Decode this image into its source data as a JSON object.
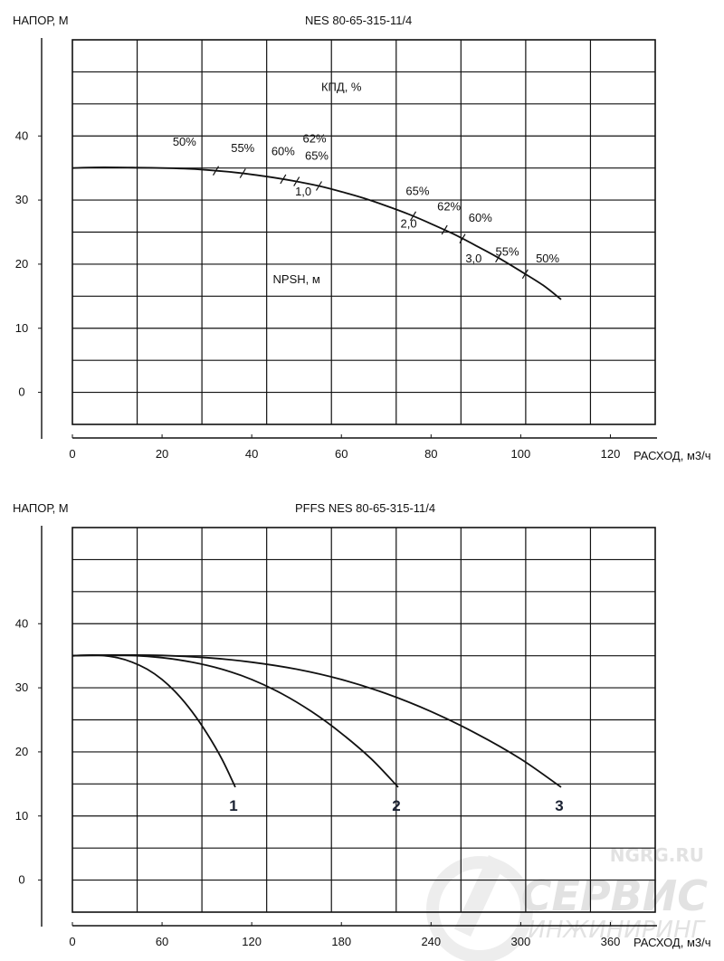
{
  "chart_data": [
    {
      "type": "line",
      "title": "NES 80-65-315-11/4",
      "ylabel": "НАПОР, М",
      "xlabel": "РАСХОД, м3/ч",
      "x_ticks": [
        0,
        20,
        40,
        60,
        80,
        100,
        120
      ],
      "y_ticks": [
        0,
        10,
        20,
        30,
        40
      ],
      "xlim": [
        0,
        130
      ],
      "ylim": [
        -5,
        55
      ],
      "grid": true,
      "series": [
        {
          "x": [
            0,
            5,
            10,
            15,
            20,
            25,
            30,
            35,
            40,
            45,
            50,
            55,
            60,
            65,
            70,
            75,
            80,
            85,
            90,
            95,
            100,
            105,
            109
          ],
          "y": [
            35,
            35.1,
            35.1,
            35.05,
            35,
            34.9,
            34.7,
            34.4,
            34,
            33.5,
            32.9,
            32.2,
            31.3,
            30.3,
            29.1,
            27.8,
            26.3,
            24.7,
            22.9,
            21,
            18.9,
            16.7,
            14.5
          ]
        }
      ],
      "annotations": [
        {
          "text": "КПД, %",
          "x": 60,
          "y": 47
        },
        {
          "text": "NPSH, м",
          "x": 50,
          "y": 17
        },
        {
          "text": "50%",
          "x": 25,
          "y": 38.5
        },
        {
          "text": "55%",
          "x": 38,
          "y": 37.5
        },
        {
          "text": "60%",
          "x": 47,
          "y": 37
        },
        {
          "text": "62%",
          "x": 54,
          "y": 39
        },
        {
          "text": "65%",
          "x": 54.5,
          "y": 36.3
        },
        {
          "text": "1,0",
          "x": 51.5,
          "y": 30.7
        },
        {
          "text": "65%",
          "x": 77,
          "y": 30.8
        },
        {
          "text": "62%",
          "x": 84,
          "y": 28.4
        },
        {
          "text": "2,0",
          "x": 75,
          "y": 25.7
        },
        {
          "text": "60%",
          "x": 91,
          "y": 26.6
        },
        {
          "text": "55%",
          "x": 97,
          "y": 21.3
        },
        {
          "text": "3,0",
          "x": 89.5,
          "y": 20.3
        },
        {
          "text": "50%",
          "x": 106,
          "y": 20.3
        }
      ],
      "efficiency_marks_x": [
        32,
        38,
        47,
        50,
        55,
        76,
        83,
        87,
        95,
        101
      ]
    },
    {
      "type": "line",
      "title": "PFFS NES 80-65-315-11/4",
      "ylabel": "НАПОР, М",
      "xlabel": "РАСХОД, м3/ч",
      "x_ticks": [
        0,
        60,
        120,
        180,
        240,
        300,
        360
      ],
      "y_ticks": [
        0,
        10,
        20,
        30,
        40
      ],
      "xlim": [
        0,
        390
      ],
      "ylim": [
        -5,
        55
      ],
      "grid": true,
      "series": [
        {
          "name": "1",
          "x": [
            0,
            10,
            20,
            30,
            40,
            50,
            60,
            70,
            80,
            90,
            100,
            109
          ],
          "y": [
            35,
            35.1,
            35.05,
            34.7,
            34,
            32.9,
            31.3,
            29.1,
            26.3,
            22.9,
            18.9,
            14.5
          ]
        },
        {
          "name": "2",
          "x": [
            0,
            20,
            40,
            60,
            80,
            100,
            120,
            140,
            160,
            180,
            200,
            218
          ],
          "y": [
            35,
            35.1,
            35.05,
            34.7,
            34,
            32.9,
            31.3,
            29.1,
            26.3,
            22.9,
            18.9,
            14.5
          ]
        },
        {
          "name": "3",
          "x": [
            0,
            30,
            60,
            90,
            120,
            150,
            180,
            210,
            240,
            270,
            300,
            327
          ],
          "y": [
            35,
            35.1,
            35.05,
            34.7,
            34,
            32.9,
            31.3,
            29.1,
            26.3,
            22.9,
            18.9,
            14.5
          ]
        }
      ]
    }
  ],
  "watermark": {
    "site": "NGRG.RU",
    "brand_top": "СЕРВИС",
    "brand_bottom": "ИНЖИНИРИНГ"
  }
}
